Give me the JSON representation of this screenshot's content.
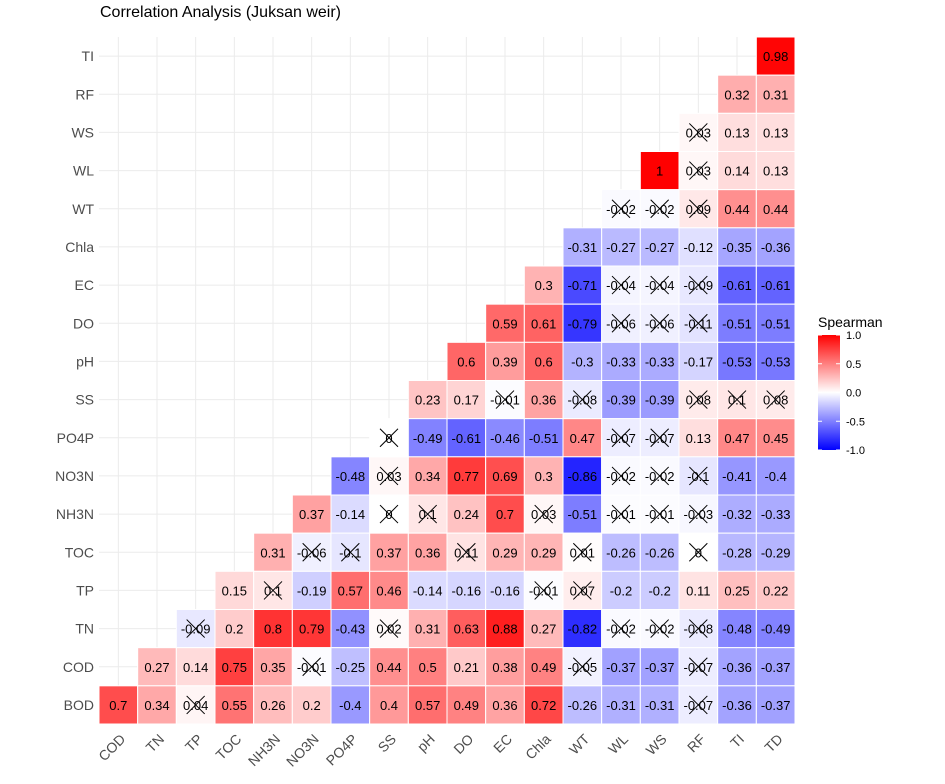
{
  "chart_data": {
    "type": "heatmap",
    "title": "Correlation Analysis (Juksan weir)",
    "x_categories": [
      "COD",
      "TN",
      "TP",
      "TOC",
      "NH3N",
      "NO3N",
      "PO4P",
      "SS",
      "pH",
      "DO",
      "EC",
      "Chla",
      "WT",
      "WL",
      "WS",
      "RF",
      "TI",
      "TD"
    ],
    "y_categories": [
      "BOD",
      "COD",
      "TN",
      "TP",
      "TOC",
      "NH3N",
      "NO3N",
      "PO4P",
      "SS",
      "pH",
      "DO",
      "EC",
      "Chla",
      "WT",
      "WL",
      "WS",
      "RF",
      "TI"
    ],
    "legend": {
      "title": "Spearman",
      "ticks": [
        "1.0",
        "0.5",
        "0.0",
        "-0.5",
        "-1.0"
      ],
      "range": [
        -1,
        1
      ],
      "low_color": "#0000FF",
      "mid_color": "#FFFFFF",
      "high_color": "#FF0000",
      "placement": "right"
    },
    "rows": [
      {
        "y": "TI",
        "values": [
          null,
          null,
          null,
          null,
          null,
          null,
          null,
          null,
          null,
          null,
          null,
          null,
          null,
          null,
          null,
          null,
          null,
          0.98
        ],
        "labels": [
          null,
          null,
          null,
          null,
          null,
          null,
          null,
          null,
          null,
          null,
          null,
          null,
          null,
          null,
          null,
          null,
          null,
          "0.98"
        ],
        "insig": [
          false,
          false,
          false,
          false,
          false,
          false,
          false,
          false,
          false,
          false,
          false,
          false,
          false,
          false,
          false,
          false,
          false,
          false
        ]
      },
      {
        "y": "RF",
        "values": [
          null,
          null,
          null,
          null,
          null,
          null,
          null,
          null,
          null,
          null,
          null,
          null,
          null,
          null,
          null,
          null,
          0.32,
          0.31
        ],
        "labels": [
          null,
          null,
          null,
          null,
          null,
          null,
          null,
          null,
          null,
          null,
          null,
          null,
          null,
          null,
          null,
          null,
          "0.32",
          "0.31"
        ],
        "insig": [
          false,
          false,
          false,
          false,
          false,
          false,
          false,
          false,
          false,
          false,
          false,
          false,
          false,
          false,
          false,
          false,
          false,
          false
        ]
      },
      {
        "y": "WS",
        "values": [
          null,
          null,
          null,
          null,
          null,
          null,
          null,
          null,
          null,
          null,
          null,
          null,
          null,
          null,
          null,
          0.03,
          0.13,
          0.13
        ],
        "labels": [
          null,
          null,
          null,
          null,
          null,
          null,
          null,
          null,
          null,
          null,
          null,
          null,
          null,
          null,
          null,
          "0.03",
          "0.13",
          "0.13"
        ],
        "insig": [
          false,
          false,
          false,
          false,
          false,
          false,
          false,
          false,
          false,
          false,
          false,
          false,
          false,
          false,
          false,
          true,
          false,
          false
        ]
      },
      {
        "y": "WL",
        "values": [
          null,
          null,
          null,
          null,
          null,
          null,
          null,
          null,
          null,
          null,
          null,
          null,
          null,
          null,
          1,
          0.03,
          0.14,
          0.13
        ],
        "labels": [
          null,
          null,
          null,
          null,
          null,
          null,
          null,
          null,
          null,
          null,
          null,
          null,
          null,
          null,
          "1",
          "0.03",
          "0.14",
          "0.13"
        ],
        "insig": [
          false,
          false,
          false,
          false,
          false,
          false,
          false,
          false,
          false,
          false,
          false,
          false,
          false,
          false,
          false,
          true,
          false,
          false
        ]
      },
      {
        "y": "WT",
        "values": [
          null,
          null,
          null,
          null,
          null,
          null,
          null,
          null,
          null,
          null,
          null,
          null,
          null,
          -0.02,
          -0.02,
          0.09,
          0.44,
          0.44
        ],
        "labels": [
          null,
          null,
          null,
          null,
          null,
          null,
          null,
          null,
          null,
          null,
          null,
          null,
          null,
          "-0.02",
          "-0.02",
          "0.09",
          "0.44",
          "0.44"
        ],
        "insig": [
          false,
          false,
          false,
          false,
          false,
          false,
          false,
          false,
          false,
          false,
          false,
          false,
          false,
          true,
          true,
          true,
          false,
          false
        ]
      },
      {
        "y": "Chla",
        "values": [
          null,
          null,
          null,
          null,
          null,
          null,
          null,
          null,
          null,
          null,
          null,
          null,
          -0.31,
          -0.27,
          -0.27,
          -0.12,
          -0.35,
          -0.36
        ],
        "labels": [
          null,
          null,
          null,
          null,
          null,
          null,
          null,
          null,
          null,
          null,
          null,
          null,
          "-0.31",
          "-0.27",
          "-0.27",
          "-0.12",
          "-0.35",
          "-0.36"
        ],
        "insig": [
          false,
          false,
          false,
          false,
          false,
          false,
          false,
          false,
          false,
          false,
          false,
          false,
          false,
          false,
          false,
          false,
          false,
          false
        ]
      },
      {
        "y": "EC",
        "values": [
          null,
          null,
          null,
          null,
          null,
          null,
          null,
          null,
          null,
          null,
          null,
          0.3,
          -0.71,
          -0.04,
          -0.04,
          -0.09,
          -0.61,
          -0.61
        ],
        "labels": [
          null,
          null,
          null,
          null,
          null,
          null,
          null,
          null,
          null,
          null,
          null,
          "0.3",
          "-0.71",
          "-0.04",
          "-0.04",
          "-0.09",
          "-0.61",
          "-0.61"
        ],
        "insig": [
          false,
          false,
          false,
          false,
          false,
          false,
          false,
          false,
          false,
          false,
          false,
          false,
          false,
          true,
          true,
          true,
          false,
          false
        ]
      },
      {
        "y": "DO",
        "values": [
          null,
          null,
          null,
          null,
          null,
          null,
          null,
          null,
          null,
          null,
          0.59,
          0.61,
          -0.79,
          -0.06,
          -0.06,
          -0.11,
          -0.51,
          -0.51
        ],
        "labels": [
          null,
          null,
          null,
          null,
          null,
          null,
          null,
          null,
          null,
          null,
          "0.59",
          "0.61",
          "-0.79",
          "-0.06",
          "-0.06",
          "-0.11",
          "-0.51",
          "-0.51"
        ],
        "insig": [
          false,
          false,
          false,
          false,
          false,
          false,
          false,
          false,
          false,
          false,
          false,
          false,
          false,
          true,
          true,
          true,
          false,
          false
        ]
      },
      {
        "y": "pH",
        "values": [
          null,
          null,
          null,
          null,
          null,
          null,
          null,
          null,
          null,
          0.6,
          0.39,
          0.6,
          -0.3,
          -0.33,
          -0.33,
          -0.17,
          -0.53,
          -0.53
        ],
        "labels": [
          null,
          null,
          null,
          null,
          null,
          null,
          null,
          null,
          null,
          "0.6",
          "0.39",
          "0.6",
          "-0.3",
          "-0.33",
          "-0.33",
          "-0.17",
          "-0.53",
          "-0.53"
        ],
        "insig": [
          false,
          false,
          false,
          false,
          false,
          false,
          false,
          false,
          false,
          false,
          false,
          false,
          false,
          false,
          false,
          false,
          false,
          false
        ]
      },
      {
        "y": "SS",
        "values": [
          null,
          null,
          null,
          null,
          null,
          null,
          null,
          null,
          0.23,
          0.17,
          -0.01,
          0.36,
          -0.08,
          -0.39,
          -0.39,
          0.08,
          0.1,
          0.08
        ],
        "labels": [
          null,
          null,
          null,
          null,
          null,
          null,
          null,
          null,
          "0.23",
          "0.17",
          "-0.01",
          "0.36",
          "-0.08",
          "-0.39",
          "-0.39",
          "0.08",
          "0.1",
          "0.08"
        ],
        "insig": [
          false,
          false,
          false,
          false,
          false,
          false,
          false,
          false,
          false,
          false,
          true,
          false,
          true,
          false,
          false,
          true,
          true,
          true
        ]
      },
      {
        "y": "PO4P",
        "values": [
          null,
          null,
          null,
          null,
          null,
          null,
          null,
          0,
          -0.49,
          -0.61,
          -0.46,
          -0.51,
          0.47,
          -0.07,
          -0.07,
          0.13,
          0.47,
          0.45
        ],
        "labels": [
          null,
          null,
          null,
          null,
          null,
          null,
          null,
          "0",
          "-0.49",
          "-0.61",
          "-0.46",
          "-0.51",
          "0.47",
          "-0.07",
          "-0.07",
          "0.13",
          "0.47",
          "0.45"
        ],
        "insig": [
          false,
          false,
          false,
          false,
          false,
          false,
          false,
          true,
          false,
          false,
          false,
          false,
          false,
          true,
          true,
          false,
          false,
          false
        ]
      },
      {
        "y": "NO3N",
        "values": [
          null,
          null,
          null,
          null,
          null,
          null,
          -0.48,
          0.03,
          0.34,
          0.77,
          0.69,
          0.3,
          -0.86,
          -0.02,
          -0.02,
          -0.1,
          -0.41,
          -0.4
        ],
        "labels": [
          null,
          null,
          null,
          null,
          null,
          null,
          "-0.48",
          "0.03",
          "0.34",
          "0.77",
          "0.69",
          "0.3",
          "-0.86",
          "-0.02",
          "-0.02",
          "-0.1",
          "-0.41",
          "-0.4"
        ],
        "insig": [
          false,
          false,
          false,
          false,
          false,
          false,
          false,
          true,
          false,
          false,
          false,
          false,
          false,
          true,
          true,
          true,
          false,
          false
        ]
      },
      {
        "y": "NH3N",
        "values": [
          null,
          null,
          null,
          null,
          null,
          0.37,
          -0.14,
          0,
          0.1,
          0.24,
          0.7,
          0.03,
          -0.51,
          -0.01,
          -0.01,
          -0.03,
          -0.32,
          -0.33
        ],
        "labels": [
          null,
          null,
          null,
          null,
          null,
          "0.37",
          "-0.14",
          "0",
          "0.1",
          "0.24",
          "0.7",
          "0.03",
          "-0.51",
          "-0.01",
          "-0.01",
          "-0.03",
          "-0.32",
          "-0.33"
        ],
        "insig": [
          false,
          false,
          false,
          false,
          false,
          false,
          false,
          true,
          true,
          false,
          false,
          true,
          false,
          true,
          true,
          true,
          false,
          false
        ]
      },
      {
        "y": "TOC",
        "values": [
          null,
          null,
          null,
          null,
          0.31,
          -0.06,
          -0.1,
          0.37,
          0.36,
          0.11,
          0.29,
          0.29,
          0.01,
          -0.26,
          -0.26,
          0,
          -0.28,
          -0.29
        ],
        "labels": [
          null,
          null,
          null,
          null,
          "0.31",
          "-0.06",
          "-0.1",
          "0.37",
          "0.36",
          "0.11",
          "0.29",
          "0.29",
          "0.01",
          "-0.26",
          "-0.26",
          "0",
          "-0.28",
          "-0.29"
        ],
        "insig": [
          false,
          false,
          false,
          false,
          false,
          true,
          true,
          false,
          false,
          true,
          false,
          false,
          true,
          false,
          false,
          true,
          false,
          false
        ]
      },
      {
        "y": "TP",
        "values": [
          null,
          null,
          null,
          0.15,
          0.1,
          -0.19,
          0.57,
          0.46,
          -0.14,
          -0.16,
          -0.16,
          -0.01,
          0.07,
          -0.2,
          -0.2,
          0.11,
          0.25,
          0.22
        ],
        "labels": [
          null,
          null,
          null,
          "0.15",
          "0.1",
          "-0.19",
          "0.57",
          "0.46",
          "-0.14",
          "-0.16",
          "-0.16",
          "-0.01",
          "0.07",
          "-0.2",
          "-0.2",
          "0.11",
          "0.25",
          "0.22"
        ],
        "insig": [
          false,
          false,
          false,
          false,
          true,
          false,
          false,
          false,
          false,
          false,
          false,
          true,
          true,
          false,
          false,
          false,
          false,
          false
        ]
      },
      {
        "y": "TN",
        "values": [
          null,
          null,
          -0.09,
          0.2,
          0.8,
          0.79,
          -0.43,
          0.02,
          0.31,
          0.63,
          0.88,
          0.27,
          -0.82,
          -0.02,
          -0.02,
          -0.08,
          -0.48,
          -0.49
        ],
        "labels": [
          null,
          null,
          "-0.09",
          "0.2",
          "0.8",
          "0.79",
          "-0.43",
          "0.02",
          "0.31",
          "0.63",
          "0.88",
          "0.27",
          "-0.82",
          "-0.02",
          "-0.02",
          "-0.08",
          "-0.48",
          "-0.49"
        ],
        "insig": [
          false,
          false,
          true,
          false,
          false,
          false,
          false,
          true,
          false,
          false,
          false,
          false,
          false,
          true,
          true,
          true,
          false,
          false
        ]
      },
      {
        "y": "COD",
        "values": [
          null,
          0.27,
          0.14,
          0.75,
          0.35,
          -0.01,
          -0.25,
          0.44,
          0.5,
          0.21,
          0.38,
          0.49,
          -0.05,
          -0.37,
          -0.37,
          -0.07,
          -0.36,
          -0.37
        ],
        "labels": [
          null,
          "0.27",
          "0.14",
          "0.75",
          "0.35",
          "-0.01",
          "-0.25",
          "0.44",
          "0.5",
          "0.21",
          "0.38",
          "0.49",
          "-0.05",
          "-0.37",
          "-0.37",
          "-0.07",
          "-0.36",
          "-0.37"
        ],
        "insig": [
          false,
          false,
          false,
          false,
          false,
          true,
          false,
          false,
          false,
          false,
          false,
          false,
          true,
          false,
          false,
          true,
          false,
          false
        ]
      },
      {
        "y": "BOD",
        "values": [
          0.7,
          0.34,
          0.04,
          0.55,
          0.26,
          0.2,
          -0.4,
          0.4,
          0.57,
          0.49,
          0.36,
          0.72,
          -0.26,
          -0.31,
          -0.31,
          -0.07,
          -0.36,
          -0.37
        ],
        "labels": [
          "0.7",
          "0.34",
          "0.04",
          "0.55",
          "0.26",
          "0.2",
          "-0.4",
          "0.4",
          "0.57",
          "0.49",
          "0.36",
          "0.72",
          "-0.26",
          "-0.31",
          "-0.31",
          "-0.07",
          "-0.36",
          "-0.37"
        ],
        "insig": [
          false,
          false,
          true,
          false,
          false,
          false,
          false,
          false,
          false,
          false,
          false,
          false,
          false,
          false,
          false,
          true,
          false,
          false
        ]
      }
    ]
  }
}
